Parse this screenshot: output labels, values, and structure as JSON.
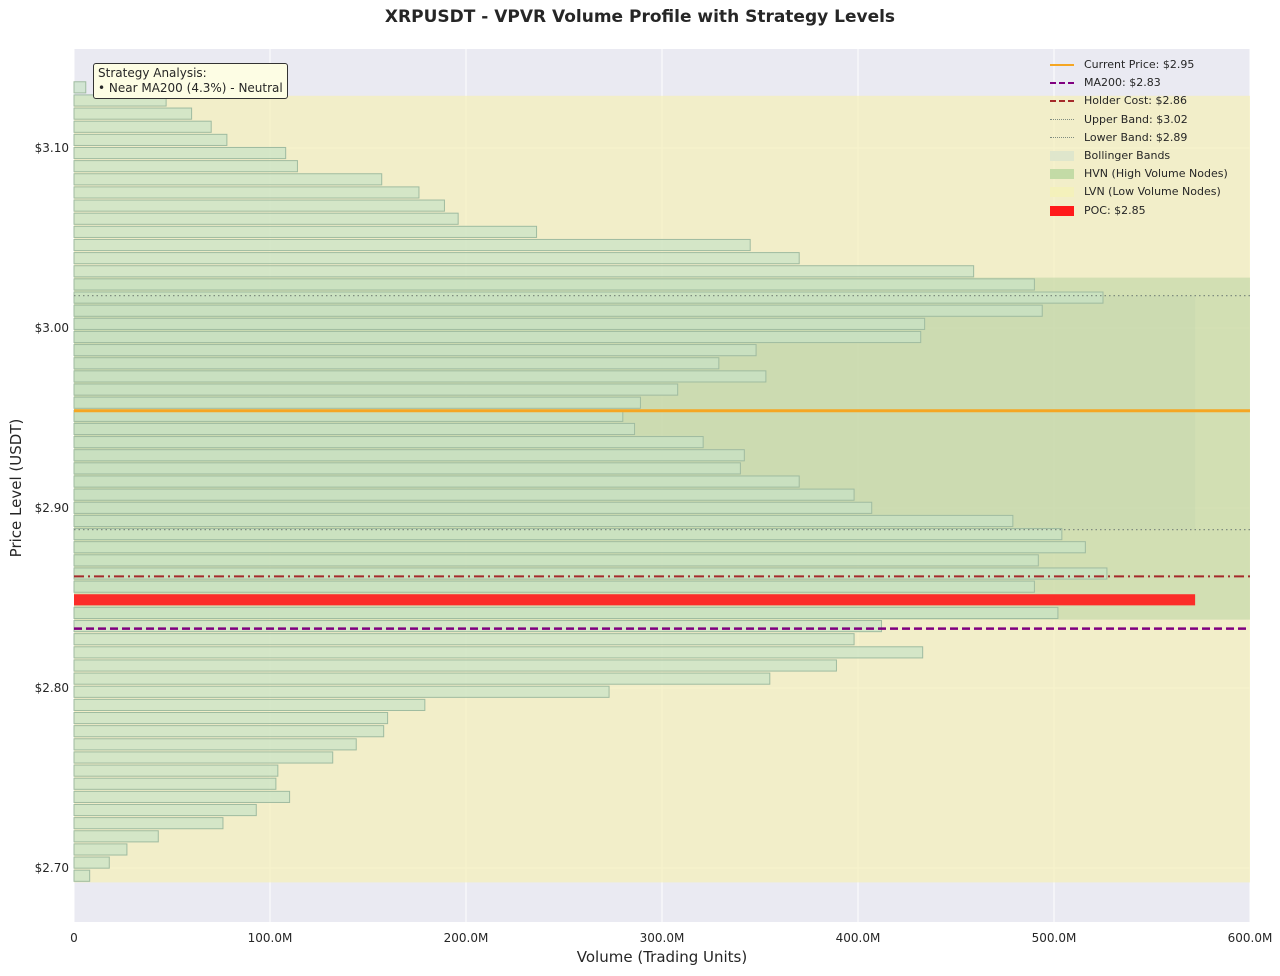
{
  "chart_data": {
    "type": "bar",
    "orientation": "horizontal",
    "title": "XRPUSDT - VPVR Volume Profile with Strategy Levels",
    "xlabel": "Volume (Trading Units)",
    "ylabel": "Price Level (USDT)",
    "xlim": [
      0,
      600000000
    ],
    "ylim": [
      2.67,
      3.155
    ],
    "x_ticks": [
      {
        "value": 0,
        "label": "0"
      },
      {
        "value": 100000000,
        "label": "100.0M"
      },
      {
        "value": 200000000,
        "label": "200.0M"
      },
      {
        "value": 300000000,
        "label": "300.0M"
      },
      {
        "value": 400000000,
        "label": "400.0M"
      },
      {
        "value": 500000000,
        "label": "500.0M"
      },
      {
        "value": 600000000,
        "label": "600.0M"
      }
    ],
    "y_ticks": [
      {
        "value": 2.7,
        "label": "$2.70"
      },
      {
        "value": 2.8,
        "label": "$2.80"
      },
      {
        "value": 2.9,
        "label": "$2.90"
      },
      {
        "value": 3.0,
        "label": "$3.00"
      },
      {
        "value": 3.1,
        "label": "$3.10"
      }
    ],
    "grid": true,
    "legend_position": "top-right",
    "bin_height": 0.0073,
    "profile": [
      {
        "price": 2.6957,
        "volume": 8000000,
        "node": "lvn"
      },
      {
        "price": 2.703,
        "volume": 18000000,
        "node": "lvn"
      },
      {
        "price": 2.7103,
        "volume": 27000000,
        "node": "lvn"
      },
      {
        "price": 2.7176,
        "volume": 43000000,
        "node": "lvn"
      },
      {
        "price": 2.7249,
        "volume": 76000000,
        "node": "lvn"
      },
      {
        "price": 2.7322,
        "volume": 93000000,
        "node": "lvn"
      },
      {
        "price": 2.7395,
        "volume": 110000000,
        "node": "lvn"
      },
      {
        "price": 2.7468,
        "volume": 103000000,
        "node": "lvn"
      },
      {
        "price": 2.7541,
        "volume": 104000000,
        "node": "lvn"
      },
      {
        "price": 2.7614,
        "volume": 132000000,
        "node": "lvn"
      },
      {
        "price": 2.7687,
        "volume": 144000000,
        "node": "lvn"
      },
      {
        "price": 2.776,
        "volume": 158000000,
        "node": "lvn"
      },
      {
        "price": 2.7833,
        "volume": 160000000,
        "node": "lvn"
      },
      {
        "price": 2.7906,
        "volume": 179000000,
        "node": "lvn"
      },
      {
        "price": 2.7979,
        "volume": 273000000,
        "node": "lvn"
      },
      {
        "price": 2.8052,
        "volume": 355000000,
        "node": "lvn"
      },
      {
        "price": 2.8125,
        "volume": 389000000,
        "node": "lvn"
      },
      {
        "price": 2.8198,
        "volume": 433000000,
        "node": "lvn"
      },
      {
        "price": 2.8271,
        "volume": 398000000,
        "node": "lvn"
      },
      {
        "price": 2.8344,
        "volume": 412000000,
        "node": "lvn"
      },
      {
        "price": 2.8417,
        "volume": 502000000,
        "node": "hvn"
      },
      {
        "price": 2.849,
        "volume": 572000000,
        "node": "poc"
      },
      {
        "price": 2.8563,
        "volume": 490000000,
        "node": "hvn"
      },
      {
        "price": 2.8636,
        "volume": 527000000,
        "node": "hvn"
      },
      {
        "price": 2.8709,
        "volume": 492000000,
        "node": "hvn"
      },
      {
        "price": 2.8782,
        "volume": 516000000,
        "node": "hvn"
      },
      {
        "price": 2.8855,
        "volume": 504000000,
        "node": "hvn"
      },
      {
        "price": 2.8928,
        "volume": 479000000,
        "node": "hvn"
      },
      {
        "price": 2.9001,
        "volume": 407000000,
        "node": "hvn"
      },
      {
        "price": 2.9074,
        "volume": 398000000,
        "node": "hvn"
      },
      {
        "price": 2.9147,
        "volume": 370000000,
        "node": "hvn"
      },
      {
        "price": 2.922,
        "volume": 340000000,
        "node": "hvn"
      },
      {
        "price": 2.9293,
        "volume": 342000000,
        "node": "hvn"
      },
      {
        "price": 2.9366,
        "volume": 321000000,
        "node": "hvn"
      },
      {
        "price": 2.9439,
        "volume": 286000000,
        "node": "hvn"
      },
      {
        "price": 2.9512,
        "volume": 280000000,
        "node": "hvn"
      },
      {
        "price": 2.9585,
        "volume": 289000000,
        "node": "hvn"
      },
      {
        "price": 2.9658,
        "volume": 308000000,
        "node": "hvn"
      },
      {
        "price": 2.9731,
        "volume": 353000000,
        "node": "hvn"
      },
      {
        "price": 2.9804,
        "volume": 329000000,
        "node": "hvn"
      },
      {
        "price": 2.9877,
        "volume": 348000000,
        "node": "hvn"
      },
      {
        "price": 2.995,
        "volume": 432000000,
        "node": "hvn"
      },
      {
        "price": 3.0023,
        "volume": 434000000,
        "node": "hvn"
      },
      {
        "price": 3.0096,
        "volume": 494000000,
        "node": "hvn"
      },
      {
        "price": 3.0169,
        "volume": 525000000,
        "node": "hvn"
      },
      {
        "price": 3.0242,
        "volume": 490000000,
        "node": "hvn"
      },
      {
        "price": 3.0315,
        "volume": 459000000,
        "node": "lvn"
      },
      {
        "price": 3.0388,
        "volume": 370000000,
        "node": "lvn"
      },
      {
        "price": 3.0461,
        "volume": 345000000,
        "node": "lvn"
      },
      {
        "price": 3.0534,
        "volume": 236000000,
        "node": "lvn"
      },
      {
        "price": 3.0607,
        "volume": 196000000,
        "node": "lvn"
      },
      {
        "price": 3.068,
        "volume": 189000000,
        "node": "lvn"
      },
      {
        "price": 3.0753,
        "volume": 176000000,
        "node": "lvn"
      },
      {
        "price": 3.0826,
        "volume": 157000000,
        "node": "lvn"
      },
      {
        "price": 3.0899,
        "volume": 114000000,
        "node": "lvn"
      },
      {
        "price": 3.0972,
        "volume": 108000000,
        "node": "lvn"
      },
      {
        "price": 3.1045,
        "volume": 78000000,
        "node": "lvn"
      },
      {
        "price": 3.1118,
        "volume": 70000000,
        "node": "lvn"
      },
      {
        "price": 3.1191,
        "volume": 60000000,
        "node": "lvn"
      },
      {
        "price": 3.1264,
        "volume": 47000000,
        "node": "lvn"
      },
      {
        "price": 3.1337,
        "volume": 6000000,
        "node": "lvn"
      }
    ],
    "levels": {
      "current_price": 2.954,
      "ma200": 2.833,
      "holder_cost": 2.862,
      "upper_band": 3.018,
      "lower_band": 2.888,
      "poc": 2.849
    },
    "zones": {
      "lvn": [
        2.692,
        3.129
      ],
      "hvn": [
        2.838,
        3.028
      ],
      "bollinger": [
        2.888,
        3.018
      ],
      "bollinger_volume_max": 572000000
    },
    "colors": {
      "plot_bg": "#eaeaf2",
      "grid": "#ffffff",
      "bar_fill": "#c8e2c6",
      "bar_edge": "#9fbba0",
      "poc": "#ff1a1a",
      "current_price": "#f5a623",
      "ma200": "#800080",
      "holder_cost": "#a52a2a",
      "band": "#7f8c7f",
      "lvn_zone": "#f5f0b8",
      "hvn_zone": "#b8d4a0",
      "bollinger_zone": "#c6d8b0"
    },
    "legend": [
      {
        "key": "current",
        "label": "Current Price: $2.95",
        "style": "line-solid",
        "color": "#f5a623"
      },
      {
        "key": "ma200",
        "label": "MA200: $2.83",
        "style": "line-dashed",
        "color": "#800080"
      },
      {
        "key": "holder",
        "label": "Holder Cost: $2.86",
        "style": "line-dashdot",
        "color": "#a52a2a"
      },
      {
        "key": "upper",
        "label": "Upper Band: $3.02",
        "style": "line-dotted",
        "color": "#7f8c7f"
      },
      {
        "key": "lower",
        "label": "Lower Band: $2.89",
        "style": "line-dotted",
        "color": "#7f8c7f"
      },
      {
        "key": "bollinger",
        "label": "Bollinger Bands",
        "style": "patch",
        "color": "#dfe6cc"
      },
      {
        "key": "hvn",
        "label": "HVN (High Volume Nodes)",
        "style": "patch",
        "color": "#c3dba6"
      },
      {
        "key": "lvn",
        "label": "LVN (Low Volume Nodes)",
        "style": "patch",
        "color": "#f4f1bb"
      },
      {
        "key": "poc",
        "label": "POC: $2.85",
        "style": "patch",
        "color": "#ff1a1a"
      }
    ],
    "annotation": {
      "title": "Strategy Analysis:",
      "line": "• Near MA200 (4.3%) - Neutral"
    }
  }
}
